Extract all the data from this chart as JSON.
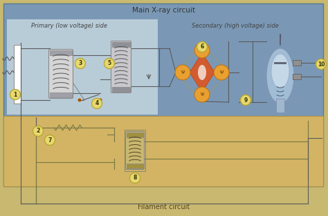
{
  "title": "Main X-ray circuit",
  "primary_label": "Primary (low voltage) side",
  "secondary_label": "Secondary (high voltage) side",
  "filament_label": "Filament circuit",
  "bg_outer": "#c8b870",
  "bg_main_xray": "#7b9ab5",
  "bg_primary": "#b5c8d8",
  "bg_secondary": "#8fa8c0",
  "bg_filament": "#d4b86a",
  "lc": "#5a5a5a",
  "lw": 0.8,
  "circle_fill": "#e8d870",
  "circle_edge": "#b8a830",
  "figsize": [
    4.74,
    3.13
  ],
  "dpi": 100
}
